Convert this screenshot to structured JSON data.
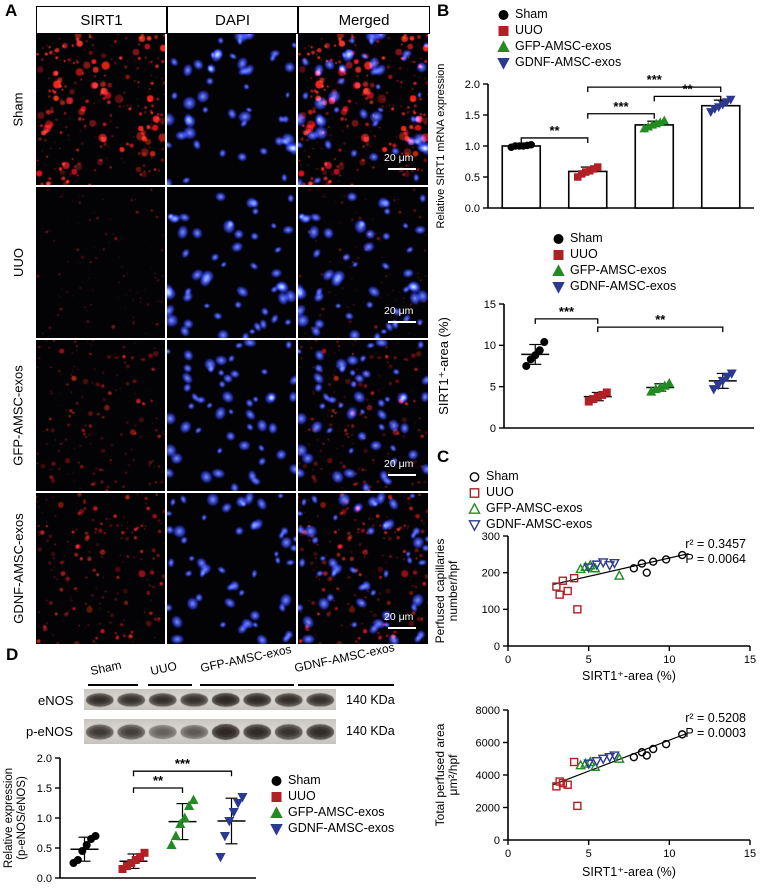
{
  "figure": {
    "panel_labels": {
      "A": "A",
      "B": "B",
      "C": "C",
      "D": "D"
    }
  },
  "groups": [
    {
      "name": "Sham",
      "color": "#000000",
      "marker": "circle"
    },
    {
      "name": "UUO",
      "color": "#b02025",
      "marker": "square"
    },
    {
      "name": "GFP-AMSC-exos",
      "color": "#228b22",
      "marker": "triangle-up"
    },
    {
      "name": "GDNF-AMSC-exos",
      "color": "#2b3990",
      "marker": "triangle-down"
    }
  ],
  "panel_a": {
    "columns": [
      "SIRT1",
      "DAPI",
      "Merged"
    ],
    "rows": [
      {
        "label": "Sham",
        "sirt1_level": 0.95
      },
      {
        "label": "UUO",
        "sirt1_level": 0.15
      },
      {
        "label": "GFP-AMSC-exos",
        "sirt1_level": 0.45
      },
      {
        "label": "GDNF-AMSC-exos",
        "sirt1_level": 0.6
      }
    ],
    "scale_bar": "20 μm"
  },
  "panel_d": {
    "lanes": [
      "Sham",
      "UUO",
      "GFP-AMSC-exos",
      "GDNF-AMSC-exos"
    ],
    "blots": [
      {
        "name": "eNOS",
        "size": "140 KDa",
        "band_intensity": [
          0.85,
          0.8,
          0.82,
          0.8,
          0.95,
          0.9,
          0.85,
          0.82
        ]
      },
      {
        "name": "p-eNOS",
        "size": "140 KDa",
        "band_intensity": [
          0.7,
          0.65,
          0.35,
          0.4,
          0.95,
          0.9,
          0.8,
          0.88
        ]
      }
    ]
  },
  "chart_data": [
    {
      "id": "sirt1_mrna",
      "type": "bar",
      "ylabel": "Relative SIRT1 mRNA expression",
      "categories": [
        "Sham",
        "UUO",
        "GFP-AMSC-exos",
        "GDNF-AMSC-exos"
      ],
      "values": [
        1.0,
        0.59,
        1.34,
        1.65
      ],
      "error": [
        0.03,
        0.07,
        0.06,
        0.09
      ],
      "points": [
        [
          0.98,
          1.0,
          1.0,
          1.0,
          1.01,
          1.02
        ],
        [
          0.5,
          0.55,
          0.58,
          0.6,
          0.63,
          0.66
        ],
        [
          1.28,
          1.31,
          1.34,
          1.36,
          1.38,
          1.41
        ],
        [
          1.55,
          1.6,
          1.63,
          1.67,
          1.71,
          1.75
        ]
      ],
      "ylim": [
        0,
        2.0
      ],
      "yticks": [
        0.0,
        0.5,
        1.0,
        1.5,
        2.0
      ],
      "significance": [
        {
          "from": 0,
          "to": 1,
          "label": "**",
          "y": 1.13
        },
        {
          "from": 1,
          "to": 2,
          "label": "***",
          "y": 1.52
        },
        {
          "from": 2,
          "to": 3,
          "label": "**",
          "y": 1.8
        },
        {
          "from": 1,
          "to": 3,
          "label": "***",
          "y": 1.95
        }
      ]
    },
    {
      "id": "sirt1_area",
      "type": "scatter",
      "ylabel": "SIRT1⁺-area (%)",
      "categories": [
        "Sham",
        "UUO",
        "GFP-AMSC-exos",
        "GDNF-AMSC-exos"
      ],
      "points": [
        [
          7.5,
          8.3,
          8.8,
          9.4,
          10.4
        ],
        [
          3.2,
          3.5,
          3.8,
          4.0,
          4.3
        ],
        [
          4.4,
          4.7,
          4.9,
          5.1,
          5.4
        ],
        [
          4.7,
          5.2,
          5.7,
          6.2,
          6.6
        ]
      ],
      "means": [
        8.9,
        3.8,
        4.9,
        5.7
      ],
      "error": [
        1.2,
        0.5,
        0.45,
        0.9
      ],
      "ylim": [
        0,
        15
      ],
      "yticks": [
        0,
        5,
        10,
        15
      ],
      "significance": [
        {
          "from": 0,
          "to": 1,
          "label": "***",
          "y": 13.2
        },
        {
          "from": 1,
          "to": 3,
          "label": "**",
          "y": 12.2
        }
      ]
    },
    {
      "id": "perfused_capillaries",
      "type": "scatter",
      "xlabel": "SIRT1⁺-area (%)",
      "ylabel_lines": [
        "Perfused capillaries",
        "number/hpf"
      ],
      "xlim": [
        0,
        15
      ],
      "xticks": [
        0,
        5,
        10,
        15
      ],
      "ylim": [
        0,
        300
      ],
      "yticks": [
        0,
        100,
        200,
        300
      ],
      "annotation": [
        "r² = 0.3457",
        "P = 0.0064"
      ],
      "series": [
        {
          "name": "Sham",
          "points": [
            [
              7.8,
              212
            ],
            [
              8.3,
              225
            ],
            [
              9.0,
              230
            ],
            [
              9.8,
              236
            ],
            [
              10.8,
              248
            ],
            [
              8.6,
              200
            ]
          ]
        },
        {
          "name": "UUO",
          "points": [
            [
              3.0,
              162
            ],
            [
              3.4,
              178
            ],
            [
              3.7,
              150
            ],
            [
              4.1,
              185
            ],
            [
              4.3,
              100
            ],
            [
              3.2,
              140
            ]
          ]
        },
        {
          "name": "GFP-AMSC-exos",
          "points": [
            [
              4.5,
              210
            ],
            [
              4.8,
              216
            ],
            [
              5.1,
              220
            ],
            [
              5.4,
              212
            ],
            [
              6.9,
              192
            ]
          ]
        },
        {
          "name": "GDNF-AMSC-exos",
          "points": [
            [
              5.0,
              214
            ],
            [
              5.5,
              222
            ],
            [
              5.9,
              228
            ],
            [
              6.3,
              220
            ],
            [
              6.6,
              226
            ]
          ]
        }
      ],
      "regression": {
        "x": [
          2.8,
          11.2
        ],
        "y": [
          168,
          252
        ]
      }
    },
    {
      "id": "total_perfused_area",
      "type": "scatter",
      "xlabel": "SIRT1⁺-area (%)",
      "ylabel_lines": [
        "Total perfused area",
        "μm²/hpf"
      ],
      "xlim": [
        0,
        15
      ],
      "xticks": [
        0,
        5,
        10,
        15
      ],
      "ylim": [
        0,
        8000
      ],
      "yticks": [
        0,
        2000,
        4000,
        6000,
        8000
      ],
      "annotation": [
        "r² = 0.5208",
        "P = 0.0003"
      ],
      "series": [
        {
          "name": "Sham",
          "points": [
            [
              7.8,
              5100
            ],
            [
              8.3,
              5400
            ],
            [
              9.0,
              5600
            ],
            [
              9.8,
              5900
            ],
            [
              10.8,
              6500
            ],
            [
              8.6,
              5200
            ]
          ]
        },
        {
          "name": "UUO",
          "points": [
            [
              3.0,
              3300
            ],
            [
              3.4,
              3500
            ],
            [
              3.7,
              3400
            ],
            [
              4.1,
              4800
            ],
            [
              4.3,
              2100
            ],
            [
              3.2,
              3600
            ]
          ]
        },
        {
          "name": "GFP-AMSC-exos",
          "points": [
            [
              4.5,
              4600
            ],
            [
              4.8,
              4700
            ],
            [
              5.1,
              4800
            ],
            [
              5.4,
              4500
            ],
            [
              6.9,
              5000
            ]
          ]
        },
        {
          "name": "GDNF-AMSC-exos",
          "points": [
            [
              5.0,
              4700
            ],
            [
              5.5,
              4850
            ],
            [
              5.9,
              5000
            ],
            [
              6.3,
              5100
            ],
            [
              6.6,
              5200
            ]
          ]
        }
      ],
      "regression": {
        "x": [
          2.8,
          11.2
        ],
        "y": [
          3400,
          6600
        ]
      }
    },
    {
      "id": "p_enos_ratio",
      "type": "scatter",
      "ylabel_lines": [
        "Relative expression",
        "(p-eNOS/eNOS)"
      ],
      "categories": [
        "Sham",
        "UUO",
        "GFP-AMSC-exos",
        "GDNF-AMSC-exos"
      ],
      "points": [
        [
          0.25,
          0.3,
          0.45,
          0.55,
          0.65,
          0.7
        ],
        [
          0.15,
          0.2,
          0.25,
          0.3,
          0.35,
          0.42
        ],
        [
          0.55,
          0.7,
          0.9,
          1.0,
          1.2,
          1.3
        ],
        [
          0.35,
          0.7,
          0.95,
          1.1,
          1.25,
          1.35
        ]
      ],
      "means": [
        0.48,
        0.28,
        0.94,
        0.95
      ],
      "error": [
        0.2,
        0.12,
        0.3,
        0.38
      ],
      "ylim": [
        0,
        2.0
      ],
      "yticks": [
        0.0,
        0.5,
        1.0,
        1.5,
        2.0
      ],
      "significance": [
        {
          "from": 1,
          "to": 2,
          "label": "**",
          "y": 1.5
        },
        {
          "from": 1,
          "to": 3,
          "label": "***",
          "y": 1.78
        }
      ]
    }
  ]
}
